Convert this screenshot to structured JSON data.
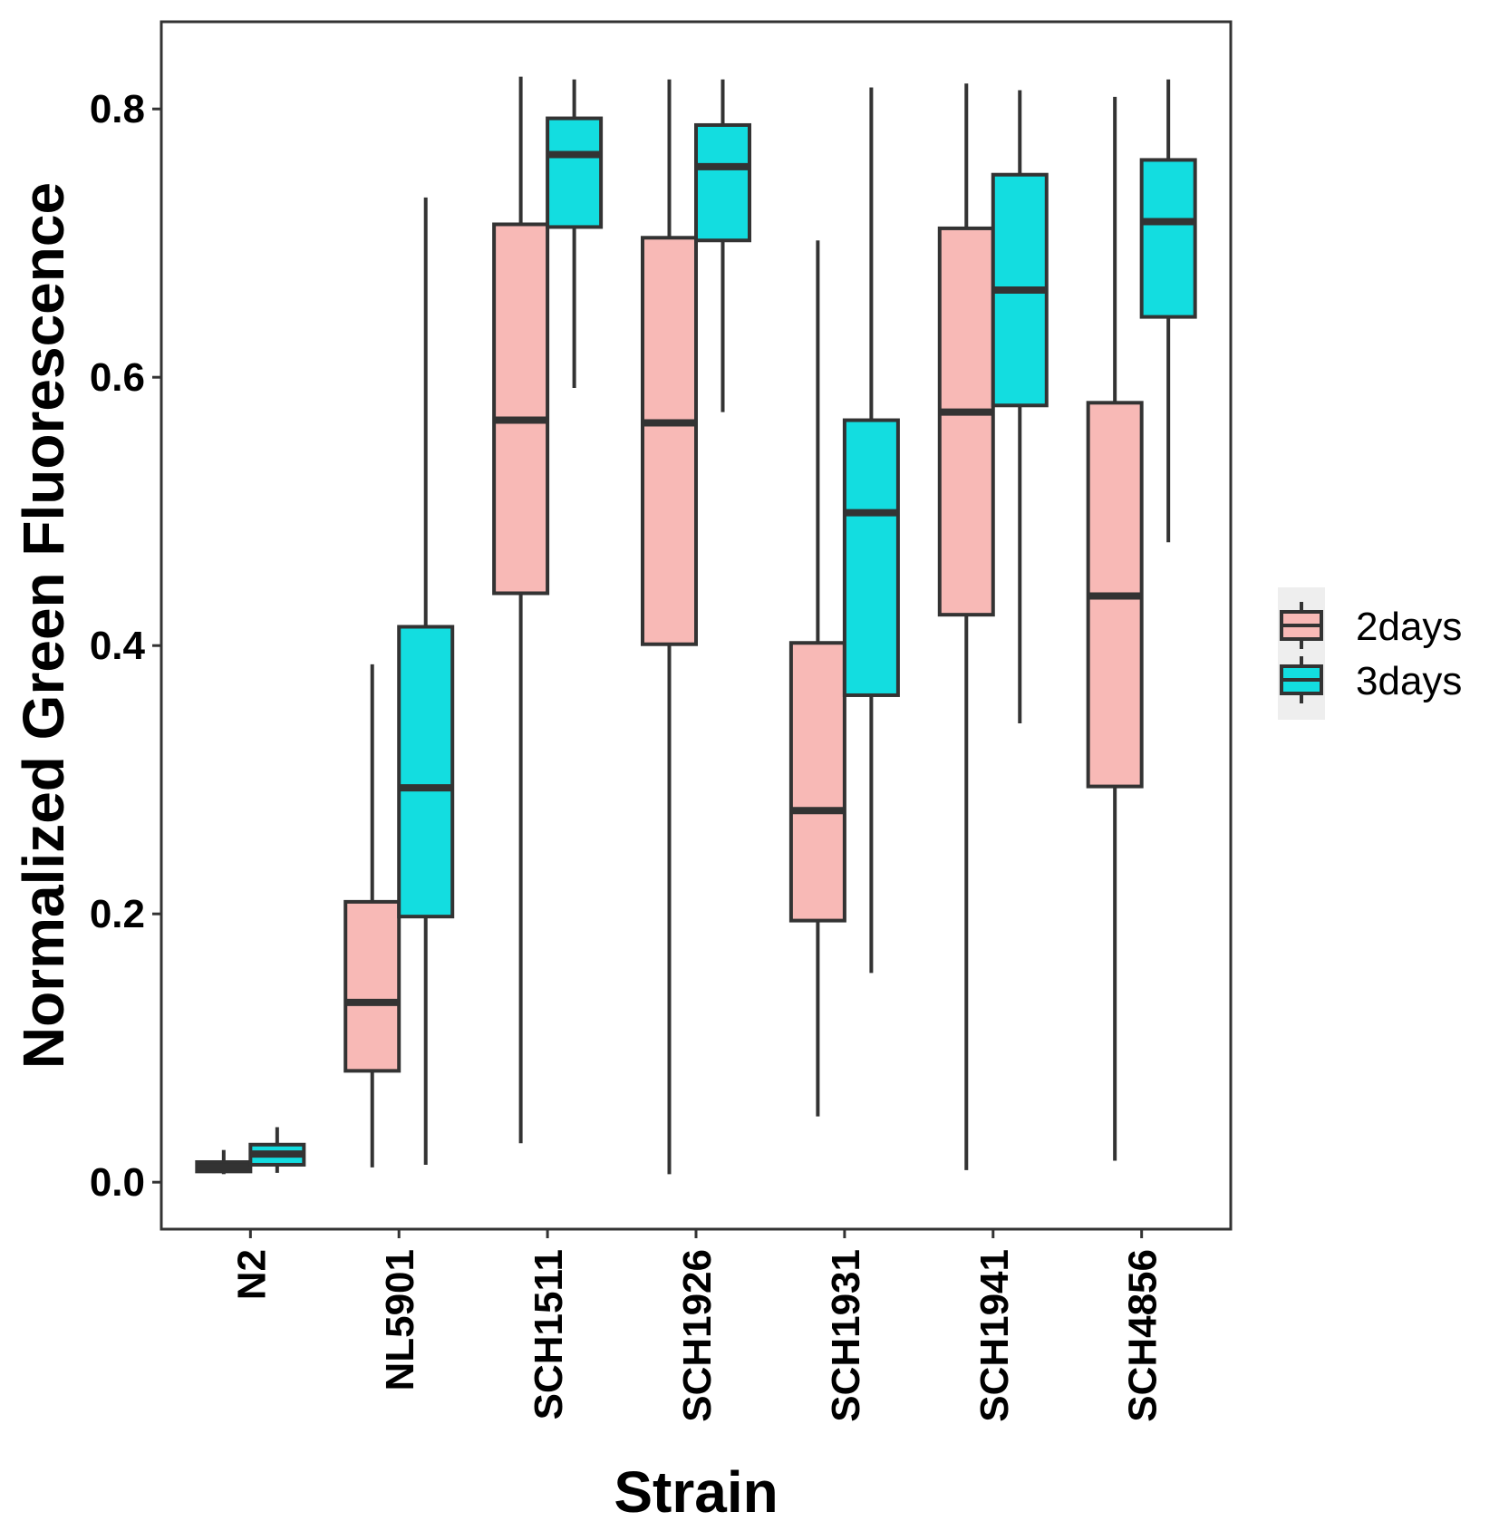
{
  "chart_data": {
    "type": "boxplot",
    "xlabel": "Strain",
    "ylabel": "Normalized Green Fluorescence",
    "ylim": [
      -0.035,
      0.865
    ],
    "yticks": [
      0.0,
      0.2,
      0.4,
      0.6,
      0.8
    ],
    "ytick_labels": [
      "0.0",
      "0.2",
      "0.4",
      "0.6",
      "0.8"
    ],
    "categories": [
      "N2",
      "NL5901",
      "SCH1511",
      "SCH1926",
      "SCH1931",
      "SCH1941",
      "SCH4856"
    ],
    "legend": {
      "position": "right",
      "entries": [
        {
          "name": "2days",
          "color": "#F8B9B6"
        },
        {
          "name": "3days",
          "color": "#13DDE0"
        }
      ]
    },
    "series": [
      {
        "name": "2days",
        "color": "#F8B9B6",
        "boxes": [
          {
            "min": 0.006,
            "q1": 0.008,
            "median": 0.011,
            "q3": 0.015,
            "max": 0.024
          },
          {
            "min": 0.011,
            "q1": 0.083,
            "median": 0.134,
            "q3": 0.209,
            "max": 0.386
          },
          {
            "min": 0.029,
            "q1": 0.439,
            "median": 0.568,
            "q3": 0.714,
            "max": 0.824
          },
          {
            "min": 0.006,
            "q1": 0.401,
            "median": 0.566,
            "q3": 0.704,
            "max": 0.822
          },
          {
            "min": 0.049,
            "q1": 0.195,
            "median": 0.277,
            "q3": 0.402,
            "max": 0.702
          },
          {
            "min": 0.009,
            "q1": 0.423,
            "median": 0.574,
            "q3": 0.711,
            "max": 0.819
          },
          {
            "min": 0.016,
            "q1": 0.295,
            "median": 0.437,
            "q3": 0.581,
            "max": 0.809
          }
        ]
      },
      {
        "name": "3days",
        "color": "#13DDE0",
        "boxes": [
          {
            "min": 0.007,
            "q1": 0.013,
            "median": 0.021,
            "q3": 0.028,
            "max": 0.041
          },
          {
            "min": 0.013,
            "q1": 0.198,
            "median": 0.294,
            "q3": 0.414,
            "max": 0.734
          },
          {
            "min": 0.592,
            "q1": 0.712,
            "median": 0.766,
            "q3": 0.793,
            "max": 0.822
          },
          {
            "min": 0.574,
            "q1": 0.702,
            "median": 0.757,
            "q3": 0.788,
            "max": 0.822
          },
          {
            "min": 0.156,
            "q1": 0.363,
            "median": 0.499,
            "q3": 0.568,
            "max": 0.816
          },
          {
            "min": 0.342,
            "q1": 0.579,
            "median": 0.665,
            "q3": 0.751,
            "max": 0.814
          },
          {
            "min": 0.477,
            "q1": 0.645,
            "median": 0.716,
            "q3": 0.762,
            "max": 0.822
          }
        ]
      }
    ]
  }
}
